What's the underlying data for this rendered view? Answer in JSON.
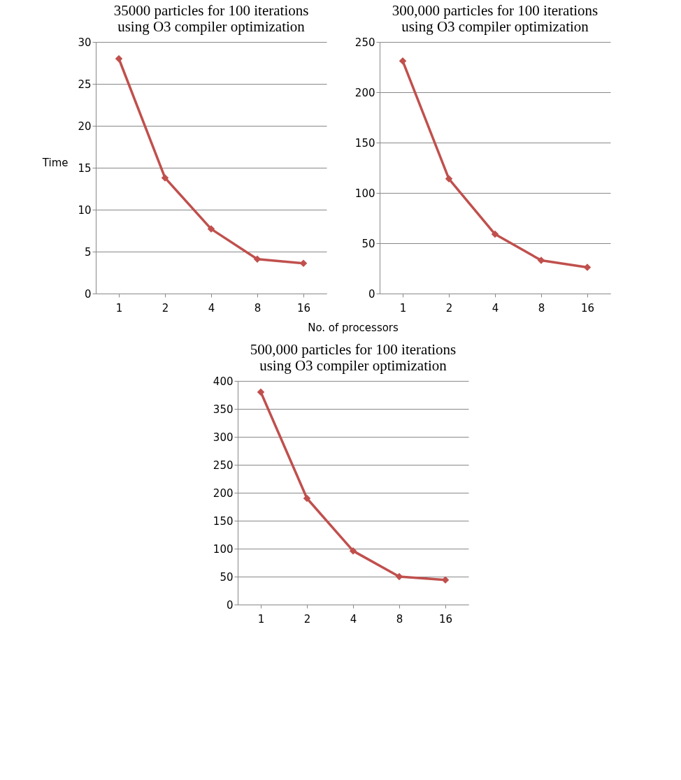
{
  "chart_data": [
    {
      "type": "line",
      "title": [
        "35000 particles for 100 iterations",
        "using O3 compiler optimization"
      ],
      "ylabel": "Time",
      "xlabel": "No. of processors",
      "categories": [
        "1",
        "2",
        "4",
        "8",
        "16"
      ],
      "series": [
        {
          "color": "#c0504d",
          "values": [
            28,
            13.8,
            7.7,
            4.1,
            3.6
          ]
        }
      ],
      "ylim": [
        0,
        30
      ],
      "yticks": [
        0,
        5,
        10,
        15,
        20,
        25,
        30
      ],
      "grid": "y",
      "legend": false,
      "marker": "diamond",
      "line_style": "solid"
    },
    {
      "type": "line",
      "title": [
        "300,000 particles for 100 iterations",
        "using O3 compiler optimization"
      ],
      "categories": [
        "1",
        "2",
        "4",
        "8",
        "16"
      ],
      "series": [
        {
          "color": "#c0504d",
          "values": [
            231,
            114,
            59,
            33,
            26
          ]
        }
      ],
      "ylim": [
        0,
        250
      ],
      "yticks": [
        0,
        50,
        100,
        150,
        200,
        250
      ],
      "grid": "y",
      "legend": false,
      "marker": "diamond",
      "line_style": "solid"
    },
    {
      "type": "line",
      "title": [
        "500,000 particles for 100 iterations",
        "using O3 compiler optimization"
      ],
      "categories": [
        "1",
        "2",
        "4",
        "8",
        "16"
      ],
      "series": [
        {
          "color": "#c0504d",
          "values": [
            380,
            190,
            96,
            50,
            44
          ]
        }
      ],
      "ylim": [
        0,
        400
      ],
      "yticks": [
        0,
        50,
        100,
        150,
        200,
        250,
        300,
        350,
        400
      ],
      "grid": "y",
      "legend": false,
      "marker": "diamond",
      "line_style": "solid"
    }
  ]
}
